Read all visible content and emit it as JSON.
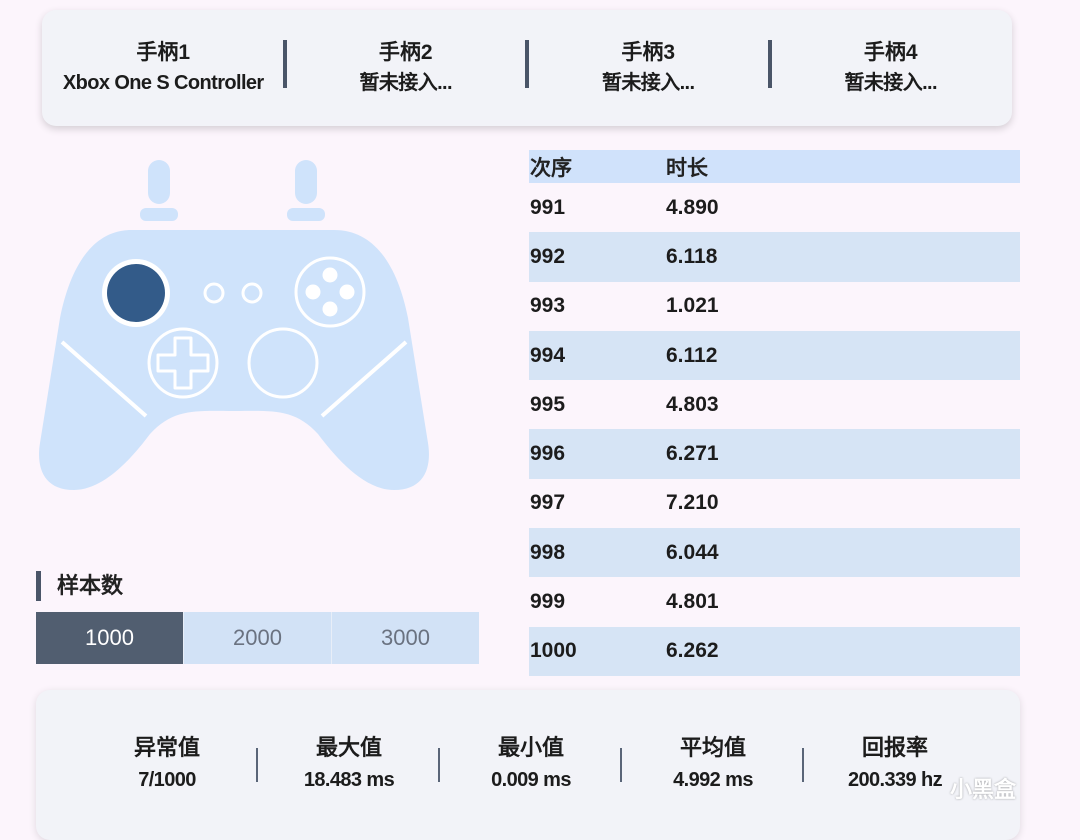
{
  "controllers": [
    {
      "name": "手柄1",
      "status": "Xbox One S Controller"
    },
    {
      "name": "手柄2",
      "status": "暂未接入..."
    },
    {
      "name": "手柄3",
      "status": "暂未接入..."
    },
    {
      "name": "手柄4",
      "status": "暂未接入..."
    }
  ],
  "sample": {
    "title": "样本数",
    "options": [
      "1000",
      "2000",
      "3000"
    ],
    "selected": "1000"
  },
  "table": {
    "headers": [
      "次序",
      "时长"
    ],
    "rows": [
      [
        "991",
        "4.890"
      ],
      [
        "992",
        "6.118"
      ],
      [
        "993",
        "1.021"
      ],
      [
        "994",
        "6.112"
      ],
      [
        "995",
        "4.803"
      ],
      [
        "996",
        "6.271"
      ],
      [
        "997",
        "7.210"
      ],
      [
        "998",
        "6.044"
      ],
      [
        "999",
        "4.801"
      ],
      [
        "1000",
        "6.262"
      ]
    ]
  },
  "stats": [
    {
      "label": "异常值",
      "value": "7/1000"
    },
    {
      "label": "最大值",
      "value": "18.483 ms"
    },
    {
      "label": "最小值",
      "value": "0.009 ms"
    },
    {
      "label": "平均值",
      "value": "4.992 ms"
    },
    {
      "label": "回报率",
      "value": "200.339 hz"
    }
  ],
  "watermark": "小黑盒",
  "colors": {
    "background": "#fcf5fc",
    "controller_fill": "#cfe3fb",
    "active_stick": "#335b89",
    "segment_active": "#515e70",
    "segment_inactive": "#d2e2f6",
    "table_header": "#d0e2fb",
    "row_alt": "#d6e4f5"
  }
}
